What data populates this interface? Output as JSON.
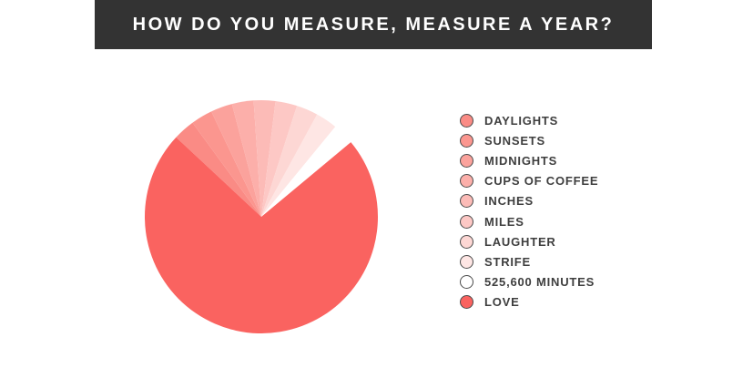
{
  "header": {
    "title": "HOW DO YOU MEASURE, MEASURE A YEAR?",
    "bg_color": "#333333",
    "text_color": "#FFFFFF"
  },
  "chart_data": {
    "type": "pie",
    "title": "HOW DO YOU MEASURE, MEASURE A YEAR?",
    "categories": [
      "DAYLIGHTS",
      "SUNSETS",
      "MIDNIGHTS",
      "CUPS OF COFFEE",
      "INCHES",
      "MILES",
      "LAUGHTER",
      "STRIFE",
      "525,600 MINUTES",
      "LOVE"
    ],
    "values": [
      3,
      3,
      3,
      3,
      3,
      3,
      3,
      3,
      3,
      73
    ],
    "unit": "percent",
    "colors": [
      "#FA8B85",
      "#FB968F",
      "#FBA29C",
      "#FCAFAA",
      "#FCBBB7",
      "#FDC8C5",
      "#FDD7D4",
      "#FEE6E4",
      "#FFFFFF",
      "#FA6360"
    ],
    "start_angle_deg": 137,
    "direction": "clockwise",
    "background": "#FFFFFF",
    "legend_position": "right",
    "legend_marker_stroke": "#4A4A4A",
    "grid": false
  }
}
